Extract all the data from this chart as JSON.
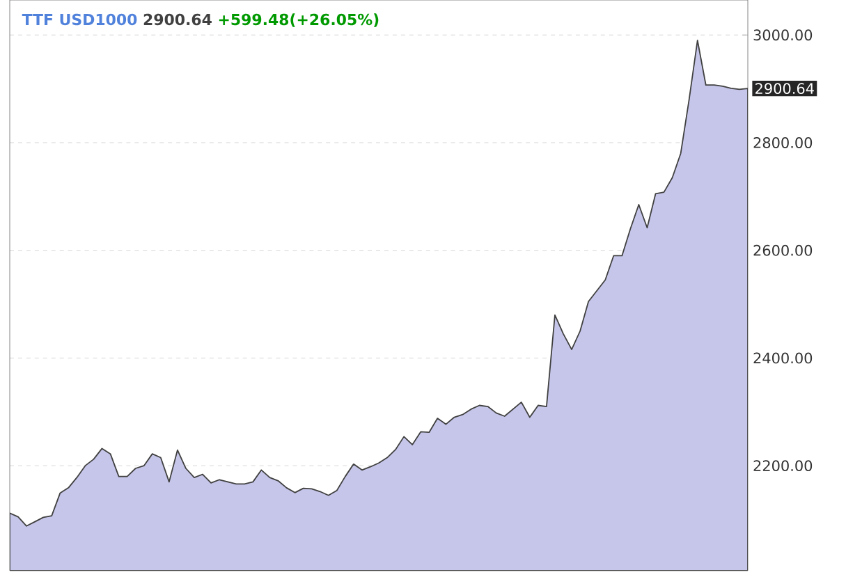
{
  "chart_data": {
    "type": "area",
    "title": "TTF USD1000",
    "annotations": [
      "2900.64",
      "+599.48(+26.05%)",
      "2900.64"
    ],
    "categories": [
      null,
      null,
      null,
      null,
      null,
      null,
      null,
      null,
      null,
      null,
      null,
      null,
      null,
      null,
      null,
      null,
      null,
      null,
      null,
      null,
      null,
      null,
      null,
      null,
      null,
      null,
      null,
      null,
      null,
      null,
      null,
      null,
      null,
      null,
      null,
      null,
      null,
      null,
      null,
      null,
      null,
      null,
      null,
      null,
      null,
      null,
      null,
      null,
      null,
      null,
      null,
      null,
      null,
      null,
      null,
      null,
      null,
      null,
      null,
      null,
      null,
      null,
      null,
      null,
      null,
      null,
      null,
      null,
      null,
      null,
      null,
      null,
      null,
      null,
      null,
      null,
      null,
      null,
      null,
      null,
      null,
      null,
      null,
      null,
      null,
      null,
      null,
      null,
      null
    ],
    "series": [
      {
        "color": "#c6c6ea",
        "values": [
          2112,
          2105,
          2088,
          2096,
          2104,
          2107,
          2149,
          2159,
          2178,
          2200,
          2212,
          2232,
          2222,
          2180,
          2180,
          2195,
          2200,
          2222,
          2215,
          2170,
          2229,
          2195,
          2178,
          2184,
          2168,
          2174,
          2170,
          2166,
          2166,
          2170,
          2192,
          2178,
          2172,
          2159,
          2150,
          2158,
          2157,
          2152,
          2145,
          2154,
          2180,
          2203,
          2192,
          2198,
          2205,
          2215,
          2230,
          2254,
          2239,
          2263,
          2262,
          2288,
          2277,
          2290,
          2295,
          2305,
          2312,
          2310,
          2298,
          2292,
          2305,
          2318,
          2290,
          2312,
          2310,
          2480,
          2445,
          2416,
          2450,
          2505,
          2525,
          2545,
          2590,
          2590,
          2640,
          2685,
          2642,
          2705,
          2708,
          2735,
          2780,
          2880,
          2990,
          2907,
          2907,
          2905,
          2901,
          2899,
          2900.64
        ]
      }
    ],
    "ylim": [
      2005,
      3065
    ],
    "yticks": [
      {
        "value": 2200,
        "label": "2200.00"
      },
      {
        "value": 2400,
        "label": "2400.00"
      },
      {
        "value": 2600,
        "label": "2600.00"
      },
      {
        "value": 2800,
        "label": "2800.00"
      },
      {
        "value": 3000,
        "label": "3000.00"
      }
    ],
    "grid": "y",
    "tick_labels": "y"
  }
}
